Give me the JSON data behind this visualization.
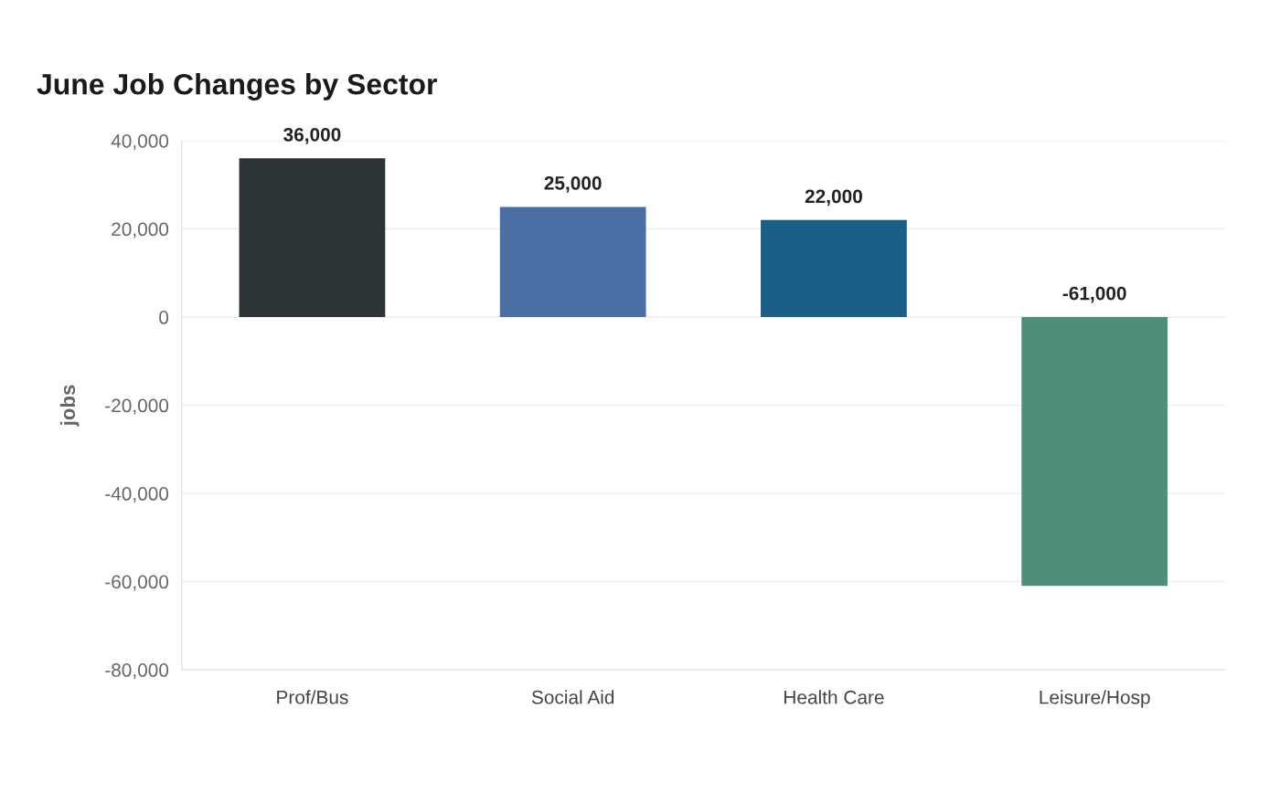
{
  "chart_data": {
    "type": "bar",
    "title": "June Job Changes by Sector",
    "ylabel": "jobs",
    "categories": [
      "Prof/Bus",
      "Social Aid",
      "Health Care",
      "Leisure/Hosp"
    ],
    "values": [
      36000,
      25000,
      22000,
      -61000
    ],
    "colors": [
      "#2d3436",
      "#4a6fa5",
      "#1a5f88",
      "#4e8e7b"
    ],
    "value_labels": [
      "36,000",
      "25,000",
      "22,000",
      "-61,000"
    ],
    "ylim": [
      -80000,
      40000
    ],
    "yticks": [
      {
        "value": -80000,
        "label": "-80,000"
      },
      {
        "value": -60000,
        "label": "-60,000"
      },
      {
        "value": -40000,
        "label": "-40,000"
      },
      {
        "value": -20000,
        "label": "-20,000"
      },
      {
        "value": 0,
        "label": "0"
      },
      {
        "value": 20000,
        "label": "20,000"
      },
      {
        "value": 40000,
        "label": "40,000"
      }
    ],
    "grid": "y",
    "legend": false
  }
}
